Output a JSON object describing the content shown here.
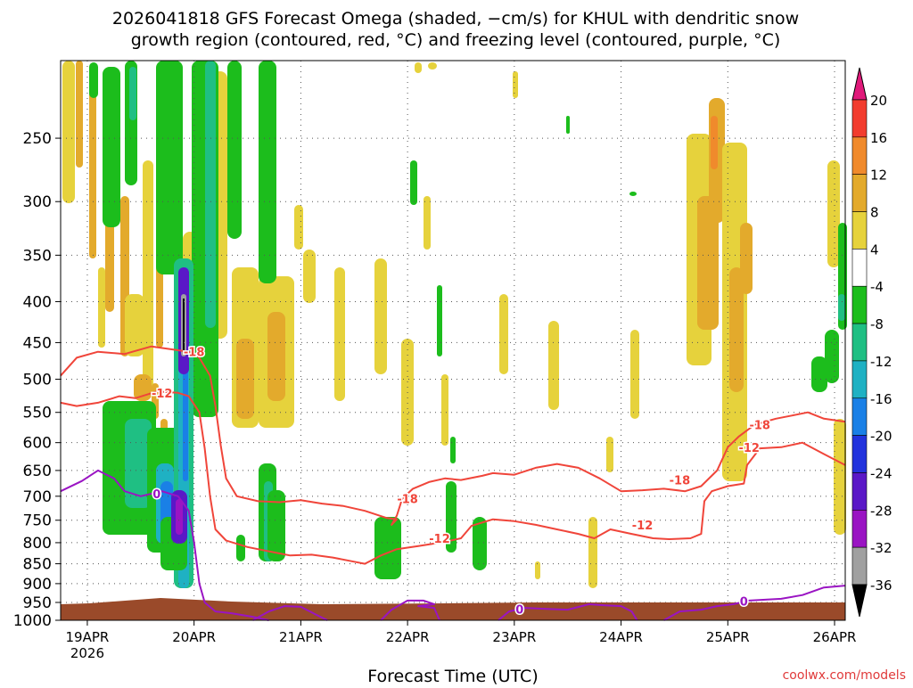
{
  "chart_data": {
    "type": "heatmap",
    "title_line1": "2026041818 GFS Forecast Omega (shaded, −cm/s) for KHUL with dendritic snow",
    "title_line2": "growth region (contoured, red, °C) and freezing level (contoured, purple, °C)",
    "xlabel": "Forecast Time (UTC)",
    "ylabel": "",
    "credit": "coolwx.com/models",
    "x_ticks": [
      {
        "t": 0,
        "label": "19APR"
      },
      {
        "t": 1,
        "label": "20APR"
      },
      {
        "t": 2,
        "label": "21APR"
      },
      {
        "t": 3,
        "label": "22APR"
      },
      {
        "t": 4,
        "label": "23APR"
      },
      {
        "t": 5,
        "label": "24APR"
      },
      {
        "t": 6,
        "label": "25APR"
      },
      {
        "t": 7,
        "label": "26APR"
      }
    ],
    "x_year_label": "2026",
    "xlim": [
      -0.25,
      7.1
    ],
    "y_ticks": [
      250,
      300,
      350,
      400,
      450,
      500,
      550,
      600,
      650,
      700,
      750,
      800,
      850,
      900,
      950,
      1000
    ],
    "ylim": [
      200,
      1000
    ],
    "grid": true,
    "colorbar": {
      "labels": [
        20,
        16,
        12,
        8,
        4,
        -4,
        -8,
        -12,
        -16,
        -20,
        -24,
        -28,
        -32,
        -36
      ],
      "colors": [
        "#e0197a",
        "#f23c2e",
        "#f08a2c",
        "#e3aa2c",
        "#e6d23c",
        "#ffffff",
        "#1cbd1c",
        "#1fbf83",
        "#1fb1c3",
        "#1a80e6",
        "#2233dd",
        "#5a18c7",
        "#9a14c3",
        "#a0a0a0",
        "#000000"
      ]
    },
    "contour_labels": {
      "dendritic_red": [
        "-18",
        "-12",
        "-18",
        "-12",
        "-18",
        "-12",
        "-18",
        "-12"
      ],
      "freezing_purple": [
        "0",
        "0",
        "0"
      ]
    },
    "series": [
      {
        "kind": "contour",
        "color": "#f0453a",
        "points": [
          [
            -0.25,
            495
          ],
          [
            -0.1,
            470
          ],
          [
            0.1,
            462
          ],
          [
            0.35,
            465
          ],
          [
            0.6,
            455
          ],
          [
            0.85,
            460
          ],
          [
            0.95,
            462
          ],
          [
            1.05,
            470
          ],
          [
            1.15,
            495
          ],
          [
            1.2,
            540
          ],
          [
            1.25,
            605
          ],
          [
            1.3,
            665
          ],
          [
            1.4,
            700
          ],
          [
            1.6,
            710
          ],
          [
            1.8,
            712
          ],
          [
            2.0,
            708
          ],
          [
            2.2,
            715
          ],
          [
            2.4,
            720
          ],
          [
            2.6,
            730
          ],
          [
            2.8,
            745
          ],
          [
            2.9,
            748
          ],
          [
            2.85,
            760
          ],
          [
            2.9,
            740
          ],
          [
            2.95,
            705
          ],
          [
            3.05,
            685
          ],
          [
            3.2,
            672
          ],
          [
            3.35,
            665
          ],
          [
            3.5,
            668
          ],
          [
            3.7,
            660
          ],
          [
            3.8,
            655
          ],
          [
            4.0,
            658
          ],
          [
            4.2,
            645
          ],
          [
            4.4,
            638
          ],
          [
            4.6,
            645
          ],
          [
            4.8,
            665
          ],
          [
            5.0,
            690
          ],
          [
            5.2,
            688
          ],
          [
            5.4,
            685
          ],
          [
            5.6,
            690
          ],
          [
            5.75,
            680
          ],
          [
            5.9,
            650
          ],
          [
            6.0,
            608
          ],
          [
            6.1,
            590
          ],
          [
            6.25,
            570
          ],
          [
            6.35,
            565
          ],
          [
            6.45,
            560
          ],
          [
            6.6,
            555
          ],
          [
            6.75,
            550
          ],
          [
            6.9,
            560
          ],
          [
            7.1,
            565
          ]
        ]
      },
      {
        "kind": "contour",
        "color": "#f0453a",
        "points": [
          [
            -0.25,
            535
          ],
          [
            -0.1,
            540
          ],
          [
            0.1,
            535
          ],
          [
            0.3,
            525
          ],
          [
            0.45,
            528
          ],
          [
            0.65,
            518
          ],
          [
            0.85,
            520
          ],
          [
            0.95,
            525
          ],
          [
            1.05,
            550
          ],
          [
            1.1,
            610
          ],
          [
            1.15,
            700
          ],
          [
            1.2,
            770
          ],
          [
            1.3,
            795
          ],
          [
            1.5,
            810
          ],
          [
            1.7,
            820
          ],
          [
            1.9,
            830
          ],
          [
            2.1,
            828
          ],
          [
            2.3,
            835
          ],
          [
            2.5,
            845
          ],
          [
            2.6,
            850
          ],
          [
            2.75,
            830
          ],
          [
            2.9,
            815
          ],
          [
            3.1,
            808
          ],
          [
            3.35,
            798
          ],
          [
            3.5,
            790
          ],
          [
            3.6,
            762
          ],
          [
            3.8,
            748
          ],
          [
            4.0,
            752
          ],
          [
            4.2,
            760
          ],
          [
            4.4,
            770
          ],
          [
            4.6,
            780
          ],
          [
            4.75,
            790
          ],
          [
            4.9,
            770
          ],
          [
            5.1,
            780
          ],
          [
            5.3,
            790
          ],
          [
            5.45,
            792
          ],
          [
            5.65,
            790
          ],
          [
            5.75,
            780
          ],
          [
            5.78,
            710
          ],
          [
            5.85,
            690
          ],
          [
            6.0,
            680
          ],
          [
            6.15,
            675
          ],
          [
            6.18,
            640
          ],
          [
            6.3,
            610
          ],
          [
            6.5,
            608
          ],
          [
            6.7,
            600
          ],
          [
            6.9,
            620
          ],
          [
            7.1,
            640
          ]
        ]
      },
      {
        "kind": "contour",
        "color": "#9a14c3",
        "points": [
          [
            -0.25,
            690
          ],
          [
            -0.05,
            670
          ],
          [
            0.1,
            650
          ],
          [
            0.25,
            665
          ],
          [
            0.35,
            690
          ],
          [
            0.5,
            700
          ],
          [
            0.7,
            690
          ],
          [
            0.85,
            700
          ],
          [
            0.95,
            730
          ],
          [
            1.0,
            800
          ],
          [
            1.05,
            900
          ],
          [
            1.1,
            950
          ],
          [
            1.2,
            975
          ],
          [
            1.35,
            980
          ],
          [
            1.55,
            990
          ],
          [
            1.7,
            1000
          ]
        ]
      },
      {
        "kind": "contour",
        "color": "#9a14c3",
        "points": [
          [
            1.55,
            1000
          ],
          [
            1.7,
            975
          ],
          [
            1.85,
            960
          ],
          [
            2.0,
            962
          ],
          [
            2.15,
            985
          ],
          [
            2.25,
            1000
          ]
        ]
      },
      {
        "kind": "contour",
        "color": "#9a14c3",
        "points": [
          [
            2.75,
            1000
          ],
          [
            2.85,
            970
          ],
          [
            3.0,
            945
          ],
          [
            3.15,
            945
          ],
          [
            3.25,
            955
          ],
          [
            3.1,
            960
          ],
          [
            3.25,
            965
          ],
          [
            3.3,
            1000
          ]
        ]
      },
      {
        "kind": "contour",
        "color": "#9a14c3",
        "points": [
          [
            3.85,
            1000
          ],
          [
            3.95,
            975
          ],
          [
            4.1,
            965
          ],
          [
            4.3,
            968
          ],
          [
            4.5,
            970
          ],
          [
            4.7,
            955
          ],
          [
            4.85,
            958
          ],
          [
            5.0,
            960
          ],
          [
            5.1,
            975
          ],
          [
            5.15,
            1000
          ]
        ]
      },
      {
        "kind": "contour",
        "color": "#9a14c3",
        "points": [
          [
            5.4,
            1000
          ],
          [
            5.55,
            975
          ],
          [
            5.75,
            970
          ],
          [
            5.9,
            960
          ],
          [
            6.05,
            955
          ],
          [
            6.2,
            945
          ],
          [
            6.5,
            940
          ],
          [
            6.7,
            930
          ],
          [
            6.9,
            910
          ],
          [
            7.1,
            905
          ]
        ]
      }
    ]
  }
}
